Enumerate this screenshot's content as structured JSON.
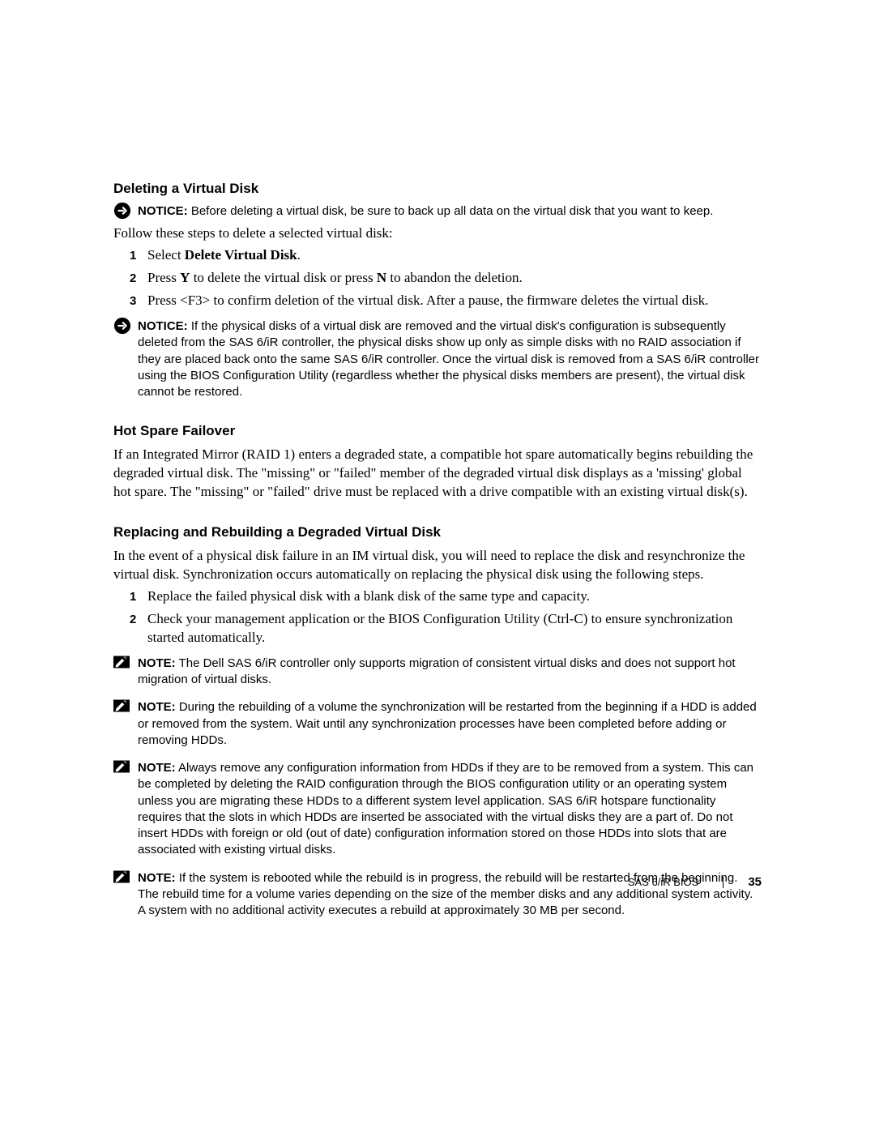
{
  "section1": {
    "heading": "Deleting a Virtual Disk",
    "notice1": {
      "label": "NOTICE:",
      "text": " Before deleting a virtual disk, be sure to back up all data on the virtual disk that you want to keep."
    },
    "intro": "Follow these steps to delete a selected virtual disk:",
    "steps": [
      {
        "num": "1",
        "prefix": "Select ",
        "bold": "Delete Virtual Disk",
        "suffix": "."
      },
      {
        "num": "2",
        "prefix": "Press ",
        "bold": "Y",
        "mid": " to delete the virtual disk or press ",
        "bold2": "N",
        "suffix": " to abandon the deletion."
      },
      {
        "num": "3",
        "text": "Press <F3> to confirm deletion of the virtual disk. After a pause, the firmware deletes the virtual disk."
      }
    ],
    "notice2": {
      "label": "NOTICE:",
      "text": " If the physical disks of a virtual disk are removed and the virtual disk's configuration is subsequently deleted from the SAS 6/iR controller, the physical disks show up only as simple disks with no RAID association if they are placed back onto the same SAS 6/iR controller. Once the virtual disk is removed from a SAS 6/iR controller using the BIOS Configuration Utility (regardless whether the physical disks members are present), the virtual disk cannot be restored."
    }
  },
  "section2": {
    "heading": "Hot Spare Failover",
    "body": "If an Integrated Mirror (RAID 1) enters a degraded state, a compatible hot spare automatically begins rebuilding the degraded virtual disk. The \"missing\" or \"failed\" member of the degraded virtual disk displays as a 'missing' global hot spare. The \"missing\" or \"failed\" drive must be replaced with a drive compatible with an existing virtual disk(s)."
  },
  "section3": {
    "heading": "Replacing and Rebuilding a Degraded Virtual Disk",
    "body": "In the event of a physical disk failure in an IM virtual disk, you will need to replace the disk and resynchronize the virtual disk. Synchronization occurs automatically on replacing the physical disk using the following steps.",
    "steps": [
      {
        "num": "1",
        "text": "Replace the failed physical disk with a blank disk of the same type and capacity."
      },
      {
        "num": "2",
        "text": "Check your management application or the BIOS Configuration Utility (Ctrl-C) to ensure synchronization started automatically."
      }
    ],
    "notes": [
      {
        "label": "NOTE:",
        "text": " The Dell SAS 6/iR controller only supports migration of consistent virtual disks and does not support hot migration of virtual disks."
      },
      {
        "label": "NOTE:",
        "text": " During the rebuilding of a volume the synchronization will be restarted from the beginning if a HDD is added or removed from the system. Wait until any synchronization processes have been completed before adding or removing HDDs."
      },
      {
        "label": "NOTE:",
        "text": " Always remove any configuration information from HDDs if they are to be removed from a system. This can be completed by deleting the RAID configuration through the BIOS configuration utility or an operating system unless you are migrating these HDDs to a different system level application. SAS 6/iR hotspare functionality requires that the slots in which HDDs are inserted be associated with the virtual disks they are a part of. Do not insert HDDs with foreign or old (out of date) configuration information stored on those HDDs into slots that are associated with existing virtual disks."
      },
      {
        "label": "NOTE:",
        "text": " If the system is rebooted while the rebuild is in progress, the rebuild will be restarted from the beginning. The rebuild time for a volume varies depending on the size of the member disks and any additional system activity. A system with no additional activity executes a rebuild at approximately 30 MB per second."
      }
    ]
  },
  "footer": {
    "title": "SAS 6/iR BIOS",
    "page": "35"
  },
  "colors": {
    "noticeIconBg": "#000000",
    "noticeIconFg": "#ffffff",
    "noteIconFg": "#000000",
    "noteIconAccent": "#446688"
  }
}
